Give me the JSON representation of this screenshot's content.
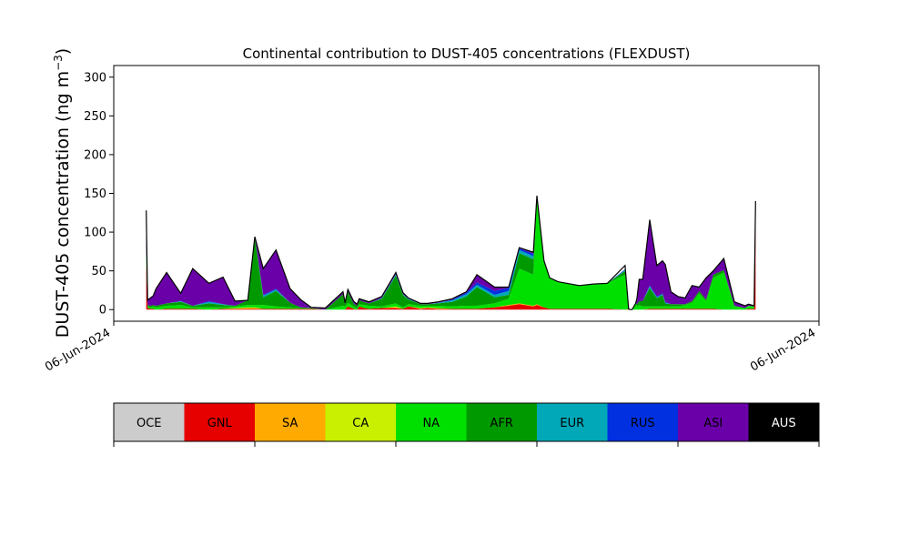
{
  "chart_data": {
    "type": "area",
    "stacked": true,
    "title": "Continental contribution to DUST-405 concentrations (FLEXDUST)",
    "ylabel_main": "DUST-405 concentration (ng m",
    "ylabel_sup": "−3",
    "ylabel_close": ")",
    "ylim": [
      -15,
      315
    ],
    "yticks": [
      0,
      50,
      100,
      150,
      200,
      250,
      300
    ],
    "xlim": [
      0,
      1
    ],
    "xtick_labels": [
      "06-Jun-2024",
      "06-Jun-2024"
    ],
    "grid": false,
    "x": [
      0.046,
      0.048,
      0.052,
      0.056,
      0.06,
      0.075,
      0.095,
      0.112,
      0.135,
      0.155,
      0.172,
      0.19,
      0.2,
      0.212,
      0.23,
      0.25,
      0.265,
      0.28,
      0.3,
      0.325,
      0.328,
      0.332,
      0.34,
      0.345,
      0.348,
      0.355,
      0.362,
      0.38,
      0.4,
      0.41,
      0.418,
      0.435,
      0.445,
      0.46,
      0.48,
      0.5,
      0.515,
      0.54,
      0.56,
      0.575,
      0.595,
      0.6,
      0.61,
      0.618,
      0.63,
      0.66,
      0.68,
      0.7,
      0.725,
      0.74,
      0.73,
      0.732,
      0.735,
      0.742,
      0.745,
      0.75,
      0.76,
      0.77,
      0.778,
      0.782,
      0.79,
      0.8,
      0.81,
      0.82,
      0.83,
      0.84,
      0.85,
      0.865,
      0.88,
      0.895,
      0.9,
      0.908,
      0.91
    ],
    "series_order": [
      "GNL",
      "SA",
      "CA",
      "NA",
      "AFR",
      "EUR",
      "RUS",
      "ASI",
      "AUS"
    ],
    "series": [
      {
        "name": "GNL",
        "color": "#e60000",
        "values": [
          60,
          2,
          1,
          1,
          0,
          1,
          1,
          1,
          0,
          1,
          1,
          1,
          1,
          1,
          1,
          1,
          1,
          1,
          0,
          0,
          0,
          4,
          1,
          0,
          4,
          2,
          1,
          2,
          2,
          1,
          4,
          1,
          2,
          1,
          1,
          1,
          1,
          3,
          5,
          7,
          4,
          6,
          3,
          1,
          1,
          1,
          1,
          1,
          0,
          0,
          1,
          0,
          0,
          0,
          0,
          0,
          1,
          1,
          1,
          1,
          1,
          1,
          1,
          1,
          1,
          1,
          1,
          0,
          0,
          0,
          1,
          1,
          135
        ]
      },
      {
        "name": "SA",
        "color": "#ffaa00",
        "values": [
          0,
          0,
          0,
          0,
          0,
          0,
          0,
          0,
          0,
          0,
          0,
          1,
          1,
          0,
          0,
          0,
          0,
          0,
          0,
          0,
          0,
          0,
          0,
          0,
          0,
          0,
          0,
          0,
          1,
          0,
          0,
          0,
          0,
          0,
          0,
          0,
          0,
          0,
          1,
          1,
          1,
          1,
          0,
          0,
          0,
          0,
          0,
          0,
          0,
          0,
          0,
          0,
          0,
          0,
          0,
          0,
          0,
          0,
          0,
          0,
          0,
          0,
          0,
          0,
          0,
          0,
          0,
          0,
          0,
          0,
          0,
          0,
          0
        ]
      },
      {
        "name": "CA",
        "color": "#c8f000",
        "values": [
          0,
          0,
          0,
          0,
          0,
          0,
          0,
          0,
          0,
          0,
          1,
          1,
          1,
          0,
          0,
          0,
          0,
          0,
          0,
          0,
          0,
          0,
          0,
          0,
          0,
          0,
          0,
          0,
          1,
          0,
          0,
          1,
          1,
          1,
          0,
          0,
          0,
          0,
          0,
          0,
          0,
          0,
          0,
          0,
          0,
          0,
          0,
          0,
          0,
          0,
          0,
          0,
          0,
          0,
          0,
          0,
          0,
          0,
          0,
          0,
          0,
          0,
          0,
          0,
          0,
          0,
          0,
          0,
          0,
          0,
          0,
          0,
          0
        ]
      },
      {
        "name": "NA",
        "color": "#00e000",
        "values": [
          10,
          2,
          2,
          3,
          3,
          4,
          5,
          2,
          3,
          2,
          2,
          3,
          3,
          5,
          3,
          2,
          1,
          1,
          0,
          5,
          4,
          5,
          3,
          2,
          3,
          4,
          4,
          2,
          4,
          2,
          3,
          3,
          2,
          3,
          3,
          4,
          4,
          5,
          8,
          45,
          40,
          140,
          60,
          40,
          35,
          30,
          32,
          33,
          45,
          8,
          0,
          0,
          0,
          4,
          6,
          4,
          3,
          3,
          3,
          3,
          3,
          3,
          5,
          8,
          20,
          10,
          40,
          48,
          5,
          2,
          4,
          3,
          5
        ]
      },
      {
        "name": "AFR",
        "color": "#009a00",
        "values": [
          8,
          2,
          2,
          2,
          2,
          3,
          4,
          2,
          5,
          3,
          1,
          6,
          88,
          10,
          20,
          6,
          1,
          0,
          0,
          15,
          3,
          14,
          4,
          3,
          5,
          4,
          3,
          10,
          36,
          16,
          6,
          2,
          2,
          3,
          6,
          12,
          24,
          8,
          5,
          20,
          20,
          0,
          0,
          0,
          0,
          0,
          0,
          0,
          5,
          0,
          0,
          0,
          0,
          3,
          5,
          7,
          24,
          11,
          15,
          4,
          3,
          3,
          1,
          2,
          3,
          2,
          4,
          3,
          0,
          0,
          0,
          0,
          0
        ]
      },
      {
        "name": "EUR",
        "color": "#00a8b8",
        "values": [
          1,
          0,
          0,
          0,
          0,
          0,
          1,
          0,
          2,
          1,
          0,
          0,
          0,
          2,
          2,
          0,
          0,
          0,
          0,
          0,
          0,
          0,
          0,
          0,
          0,
          0,
          0,
          1,
          1,
          1,
          1,
          0,
          0,
          1,
          2,
          3,
          3,
          3,
          5,
          4,
          4,
          0,
          0,
          0,
          0,
          0,
          0,
          0,
          1,
          0,
          0,
          0,
          0,
          0,
          0,
          0,
          2,
          1,
          1,
          1,
          0,
          0,
          0,
          0,
          0,
          0,
          0,
          0,
          0,
          0,
          0,
          0,
          0
        ]
      },
      {
        "name": "RUS",
        "color": "#0030e0",
        "values": [
          1,
          0,
          0,
          0,
          0,
          0,
          0,
          0,
          1,
          0,
          0,
          0,
          0,
          1,
          1,
          0,
          0,
          0,
          0,
          0,
          0,
          0,
          0,
          0,
          0,
          0,
          0,
          0,
          1,
          0,
          0,
          0,
          0,
          0,
          1,
          2,
          3,
          5,
          4,
          2,
          3,
          0,
          0,
          0,
          0,
          0,
          0,
          0,
          1,
          0,
          0,
          0,
          0,
          0,
          0,
          0,
          1,
          1,
          1,
          1,
          0,
          0,
          0,
          0,
          0,
          0,
          0,
          0,
          0,
          0,
          0,
          0,
          0
        ]
      },
      {
        "name": "ASI",
        "color": "#6a00a8",
        "values": [
          20,
          8,
          10,
          12,
          22,
          40,
          10,
          48,
          23,
          35,
          6,
          0,
          0,
          34,
          50,
          18,
          10,
          1,
          2,
          3,
          2,
          3,
          3,
          2,
          2,
          2,
          2,
          2,
          2,
          2,
          1,
          1,
          1,
          1,
          1,
          1,
          10,
          5,
          1,
          1,
          2,
          0,
          0,
          0,
          0,
          0,
          0,
          0,
          0,
          0,
          0,
          0,
          0,
          8,
          28,
          28,
          85,
          40,
          42,
          48,
          16,
          10,
          8,
          20,
          5,
          28,
          5,
          15,
          5,
          3,
          2,
          1,
          0
        ]
      },
      {
        "name": "AUS",
        "color": "#000000",
        "values": [
          30,
          0,
          0,
          0,
          0,
          0,
          0,
          0,
          0,
          0,
          0,
          0,
          0,
          0,
          0,
          0,
          0,
          0,
          0,
          0,
          0,
          0,
          0,
          0,
          0,
          0,
          0,
          0,
          0,
          0,
          0,
          0,
          0,
          0,
          0,
          0,
          0,
          0,
          0,
          0,
          0,
          0,
          0,
          0,
          0,
          0,
          0,
          0,
          0,
          0,
          0,
          0,
          0,
          0,
          0,
          0,
          0,
          0,
          0,
          0,
          0,
          0,
          0,
          0,
          0,
          0,
          0,
          0,
          0,
          0,
          0,
          0,
          0
        ]
      }
    ],
    "total": [
      128,
      12,
      15,
      18,
      27,
      48,
      21,
      53,
      34,
      42,
      11,
      12,
      94,
      53,
      77,
      27,
      13,
      3,
      2,
      23,
      9,
      26,
      11,
      7,
      14,
      12,
      10,
      17,
      48,
      22,
      15,
      8,
      8,
      10,
      14,
      23,
      45,
      29,
      29,
      80,
      74,
      147,
      63,
      41,
      36,
      31,
      33,
      34,
      57,
      8,
      1,
      0,
      0,
      15,
      39,
      39,
      116,
      57,
      63,
      58,
      23,
      17,
      15,
      31,
      29,
      41,
      50,
      66,
      10,
      5,
      7,
      5,
      140
    ]
  },
  "legend": {
    "items": [
      {
        "label": "OCE",
        "color": "#cccccc"
      },
      {
        "label": "GNL",
        "color": "#e60000"
      },
      {
        "label": "SA",
        "color": "#ffaa00"
      },
      {
        "label": "CA",
        "color": "#c8f000"
      },
      {
        "label": "NA",
        "color": "#00e000"
      },
      {
        "label": "AFR",
        "color": "#009a00"
      },
      {
        "label": "EUR",
        "color": "#00a8b8"
      },
      {
        "label": "RUS",
        "color": "#0030e0"
      },
      {
        "label": "ASI",
        "color": "#6a00a8"
      },
      {
        "label": "AUS",
        "color": "#000000"
      }
    ]
  }
}
